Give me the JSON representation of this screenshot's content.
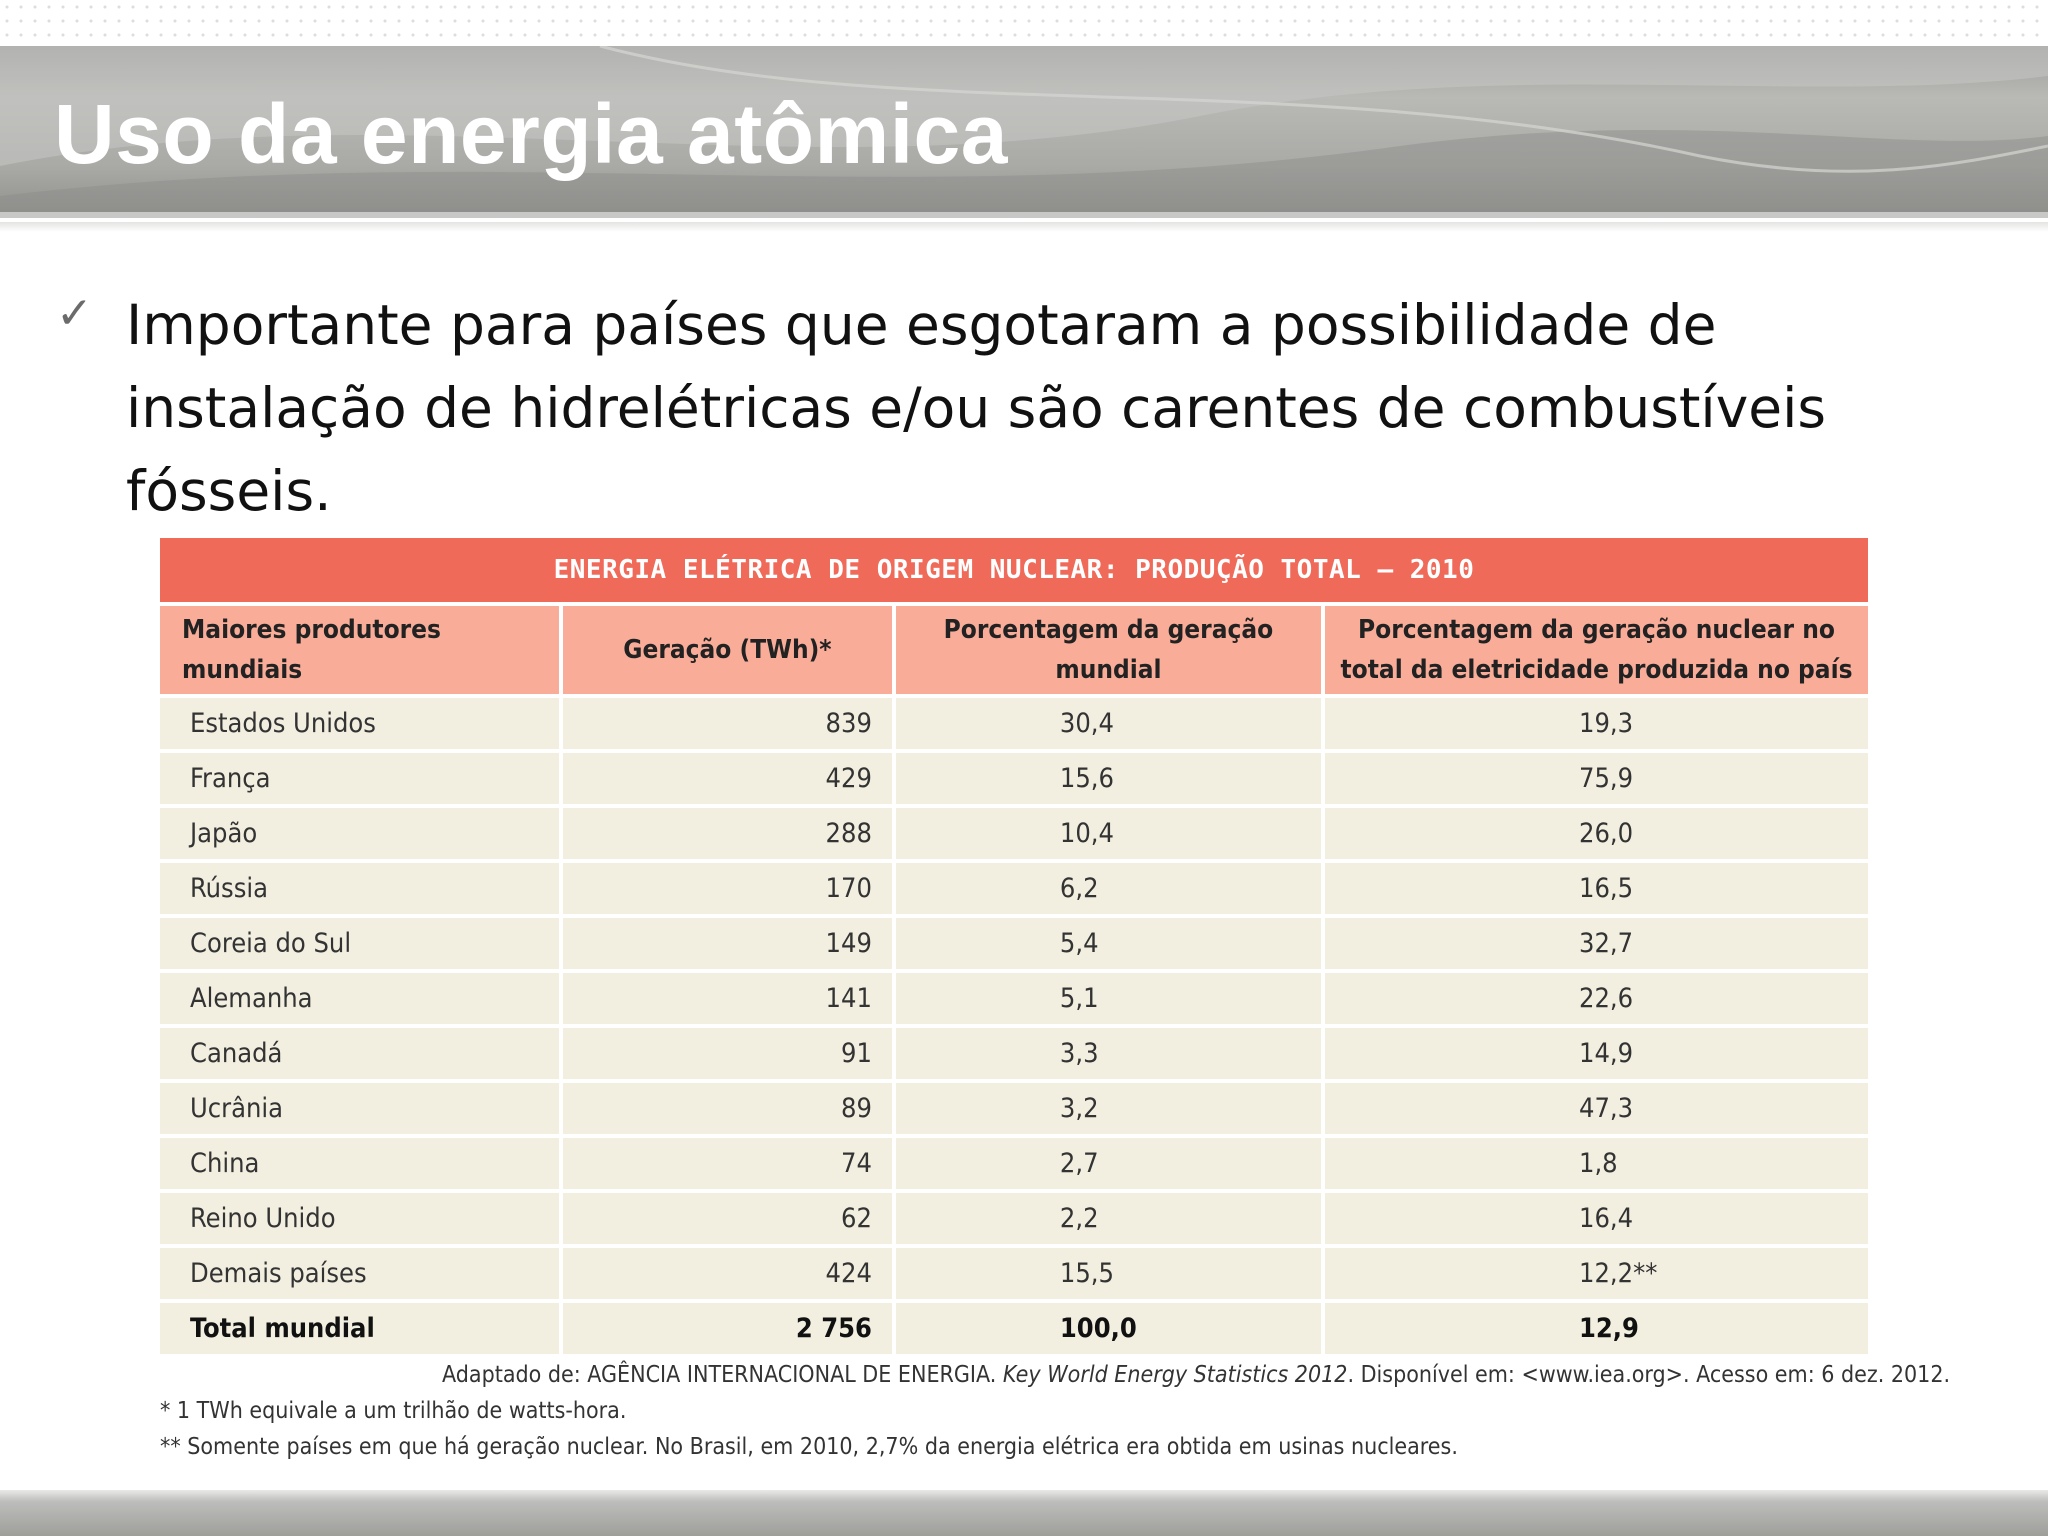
{
  "slide": {
    "title": "Uso da energia atômica",
    "bullet": "Importante para países que esgotaram a possibilidade de instalação de hidrelétricas e/ou são carentes de combustíveis fósseis."
  },
  "table": {
    "caption": "ENERGIA ELÉTRICA DE ORIGEM NUCLEAR: PRODUÇÃO TOTAL – 2010",
    "headers": [
      "Maiores produtores mundiais",
      "Geração (TWh)*",
      "Porcentagem da geração mundial",
      "Porcentagem da geração nuclear no total da eletricidade produzida no país"
    ],
    "rows": [
      [
        "Estados Unidos",
        "839",
        "30,4",
        "19,3"
      ],
      [
        "França",
        "429",
        "15,6",
        "75,9"
      ],
      [
        "Japão",
        "288",
        "10,4",
        "26,0"
      ],
      [
        "Rússia",
        "170",
        "6,2",
        "16,5"
      ],
      [
        "Coreia do Sul",
        "149",
        "5,4",
        "32,7"
      ],
      [
        "Alemanha",
        "141",
        "5,1",
        "22,6"
      ],
      [
        "Canadá",
        "91",
        "3,3",
        "14,9"
      ],
      [
        "Ucrânia",
        "89",
        "3,2",
        "47,3"
      ],
      [
        "China",
        "74",
        "2,7",
        "1,8"
      ],
      [
        "Reino Unido",
        "62",
        "2,2",
        "16,4"
      ],
      [
        "Demais países",
        "424",
        "15,5",
        "12,2**"
      ]
    ],
    "total": [
      "Total mundial",
      "2 756",
      "100,0",
      "12,9"
    ]
  },
  "source": {
    "prefix": "Adaptado de: AGÊNCIA INTERNACIONAL DE ENERGIA. ",
    "title": "Key World Energy Statistics 2012",
    "suffix": ". Disponível em: <www.iea.org>. Acesso em: 6 dez. 2012."
  },
  "notes": [
    "* 1 TWh equivale a um trilhão de watts-hora.",
    "** Somente países em que há geração nuclear. No Brasil, em 2010, 2,7% da energia elétrica era obtida em usinas nucleares."
  ],
  "colors": {
    "caption_bg": "#f06a5a",
    "header_bg": "#f9ad99",
    "row_bg": "#f2efe0",
    "title_band": "#a9a9a6"
  },
  "icons": {
    "bullet": "checkmark-icon"
  }
}
